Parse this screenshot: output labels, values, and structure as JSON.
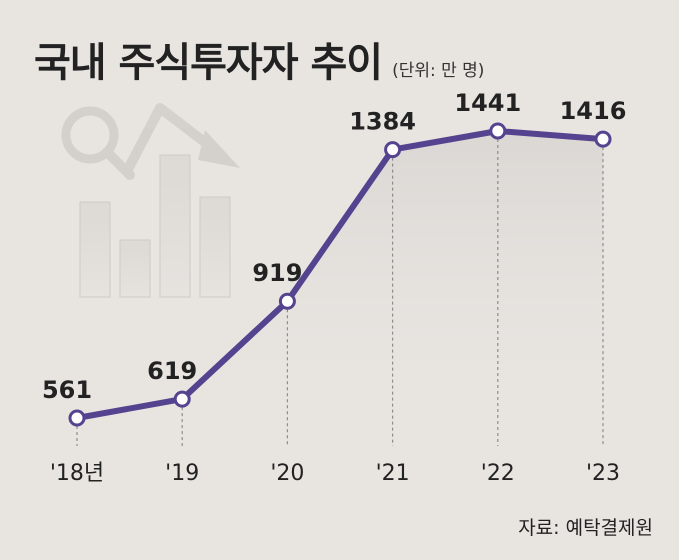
{
  "header": {
    "title": "국내 주식투자자 추이",
    "unit": "(단위: 만 명)"
  },
  "source": "자료: 예탁결제원",
  "colors": {
    "background": "#e8e5e1",
    "line": "#56438f",
    "marker_fill": "#ffffff",
    "deco": "#d3d0cc"
  },
  "chart_data": {
    "type": "line",
    "title": "국내 주식투자자 추이",
    "unit": "(단위: 만 명)",
    "categories": [
      "'18년",
      "'19",
      "'20",
      "'21",
      "'22",
      "'23"
    ],
    "values": [
      561,
      619,
      919,
      1384,
      1441,
      1416
    ],
    "xlabel": "",
    "ylabel": "",
    "grid": false,
    "data_labels": true,
    "decorative_icon": "magnifier-bar-chart-icon"
  }
}
